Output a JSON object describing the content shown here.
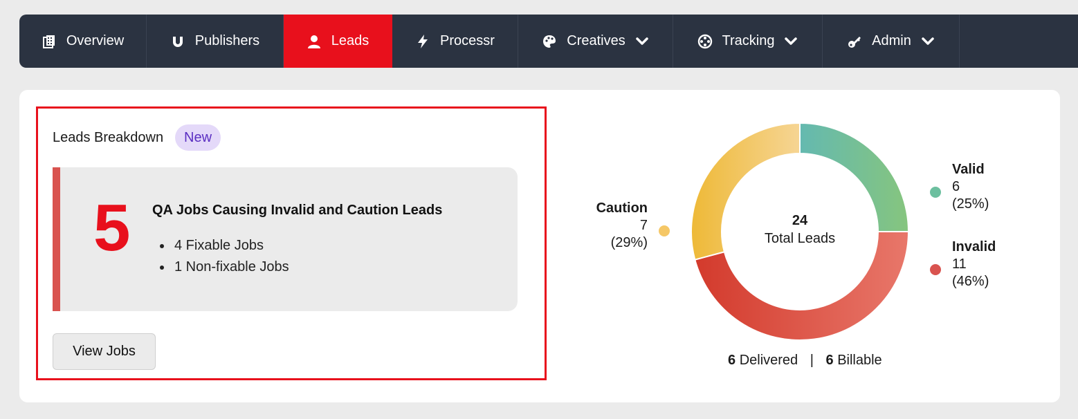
{
  "nav": {
    "items": [
      {
        "label": "Overview",
        "icon": "building-icon",
        "active": false,
        "dropdown": false
      },
      {
        "label": "Publishers",
        "icon": "magnet-icon",
        "active": false,
        "dropdown": false
      },
      {
        "label": "Leads",
        "icon": "user-icon",
        "active": true,
        "dropdown": false
      },
      {
        "label": "Processr",
        "icon": "bolt-icon",
        "active": false,
        "dropdown": false
      },
      {
        "label": "Creatives",
        "icon": "palette-icon",
        "active": false,
        "dropdown": true
      },
      {
        "label": "Tracking",
        "icon": "crosshair-icon",
        "active": false,
        "dropdown": true
      },
      {
        "label": "Admin",
        "icon": "key-icon",
        "active": false,
        "dropdown": true
      }
    ]
  },
  "breakdown": {
    "title": "Leads Breakdown",
    "badge": "New",
    "qa_count": "5",
    "qa_heading": "QA Jobs Causing Invalid and Caution Leads",
    "qa_items": [
      "4 Fixable Jobs",
      "1 Non-fixable Jobs"
    ],
    "view_button": "View Jobs"
  },
  "chart_data": {
    "type": "pie",
    "center_value": "24",
    "center_label": "Total Leads",
    "slices": [
      {
        "name": "Valid",
        "value": 6,
        "percent": "(25%)",
        "color": "#6cbf9f"
      },
      {
        "name": "Invalid",
        "value": 11,
        "percent": "(46%)",
        "color": "#d9534f"
      },
      {
        "name": "Caution",
        "value": 7,
        "percent": "(29%)",
        "color": "#f0c15a"
      }
    ]
  },
  "stats": {
    "delivered_count": "6",
    "delivered_label": "Delivered",
    "separator": "|",
    "billable_count": "6",
    "billable_label": "Billable"
  }
}
